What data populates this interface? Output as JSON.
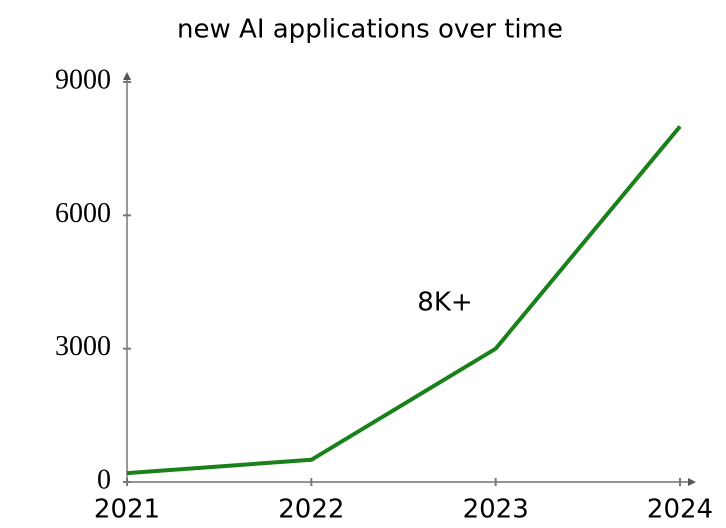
{
  "chart_data": {
    "type": "line",
    "title": "new AI applications over time",
    "x": [
      2021,
      2022,
      2023,
      2024
    ],
    "values": [
      200,
      500,
      3000,
      8000
    ],
    "color": "#1a801a",
    "xlim": [
      2021,
      2024
    ],
    "xticks": [
      2021,
      2022,
      2023,
      2024
    ],
    "ylim": [
      0,
      9000
    ],
    "yticks": [
      0,
      3000,
      6000,
      9000
    ],
    "annotations": [
      "8K+"
    ]
  }
}
